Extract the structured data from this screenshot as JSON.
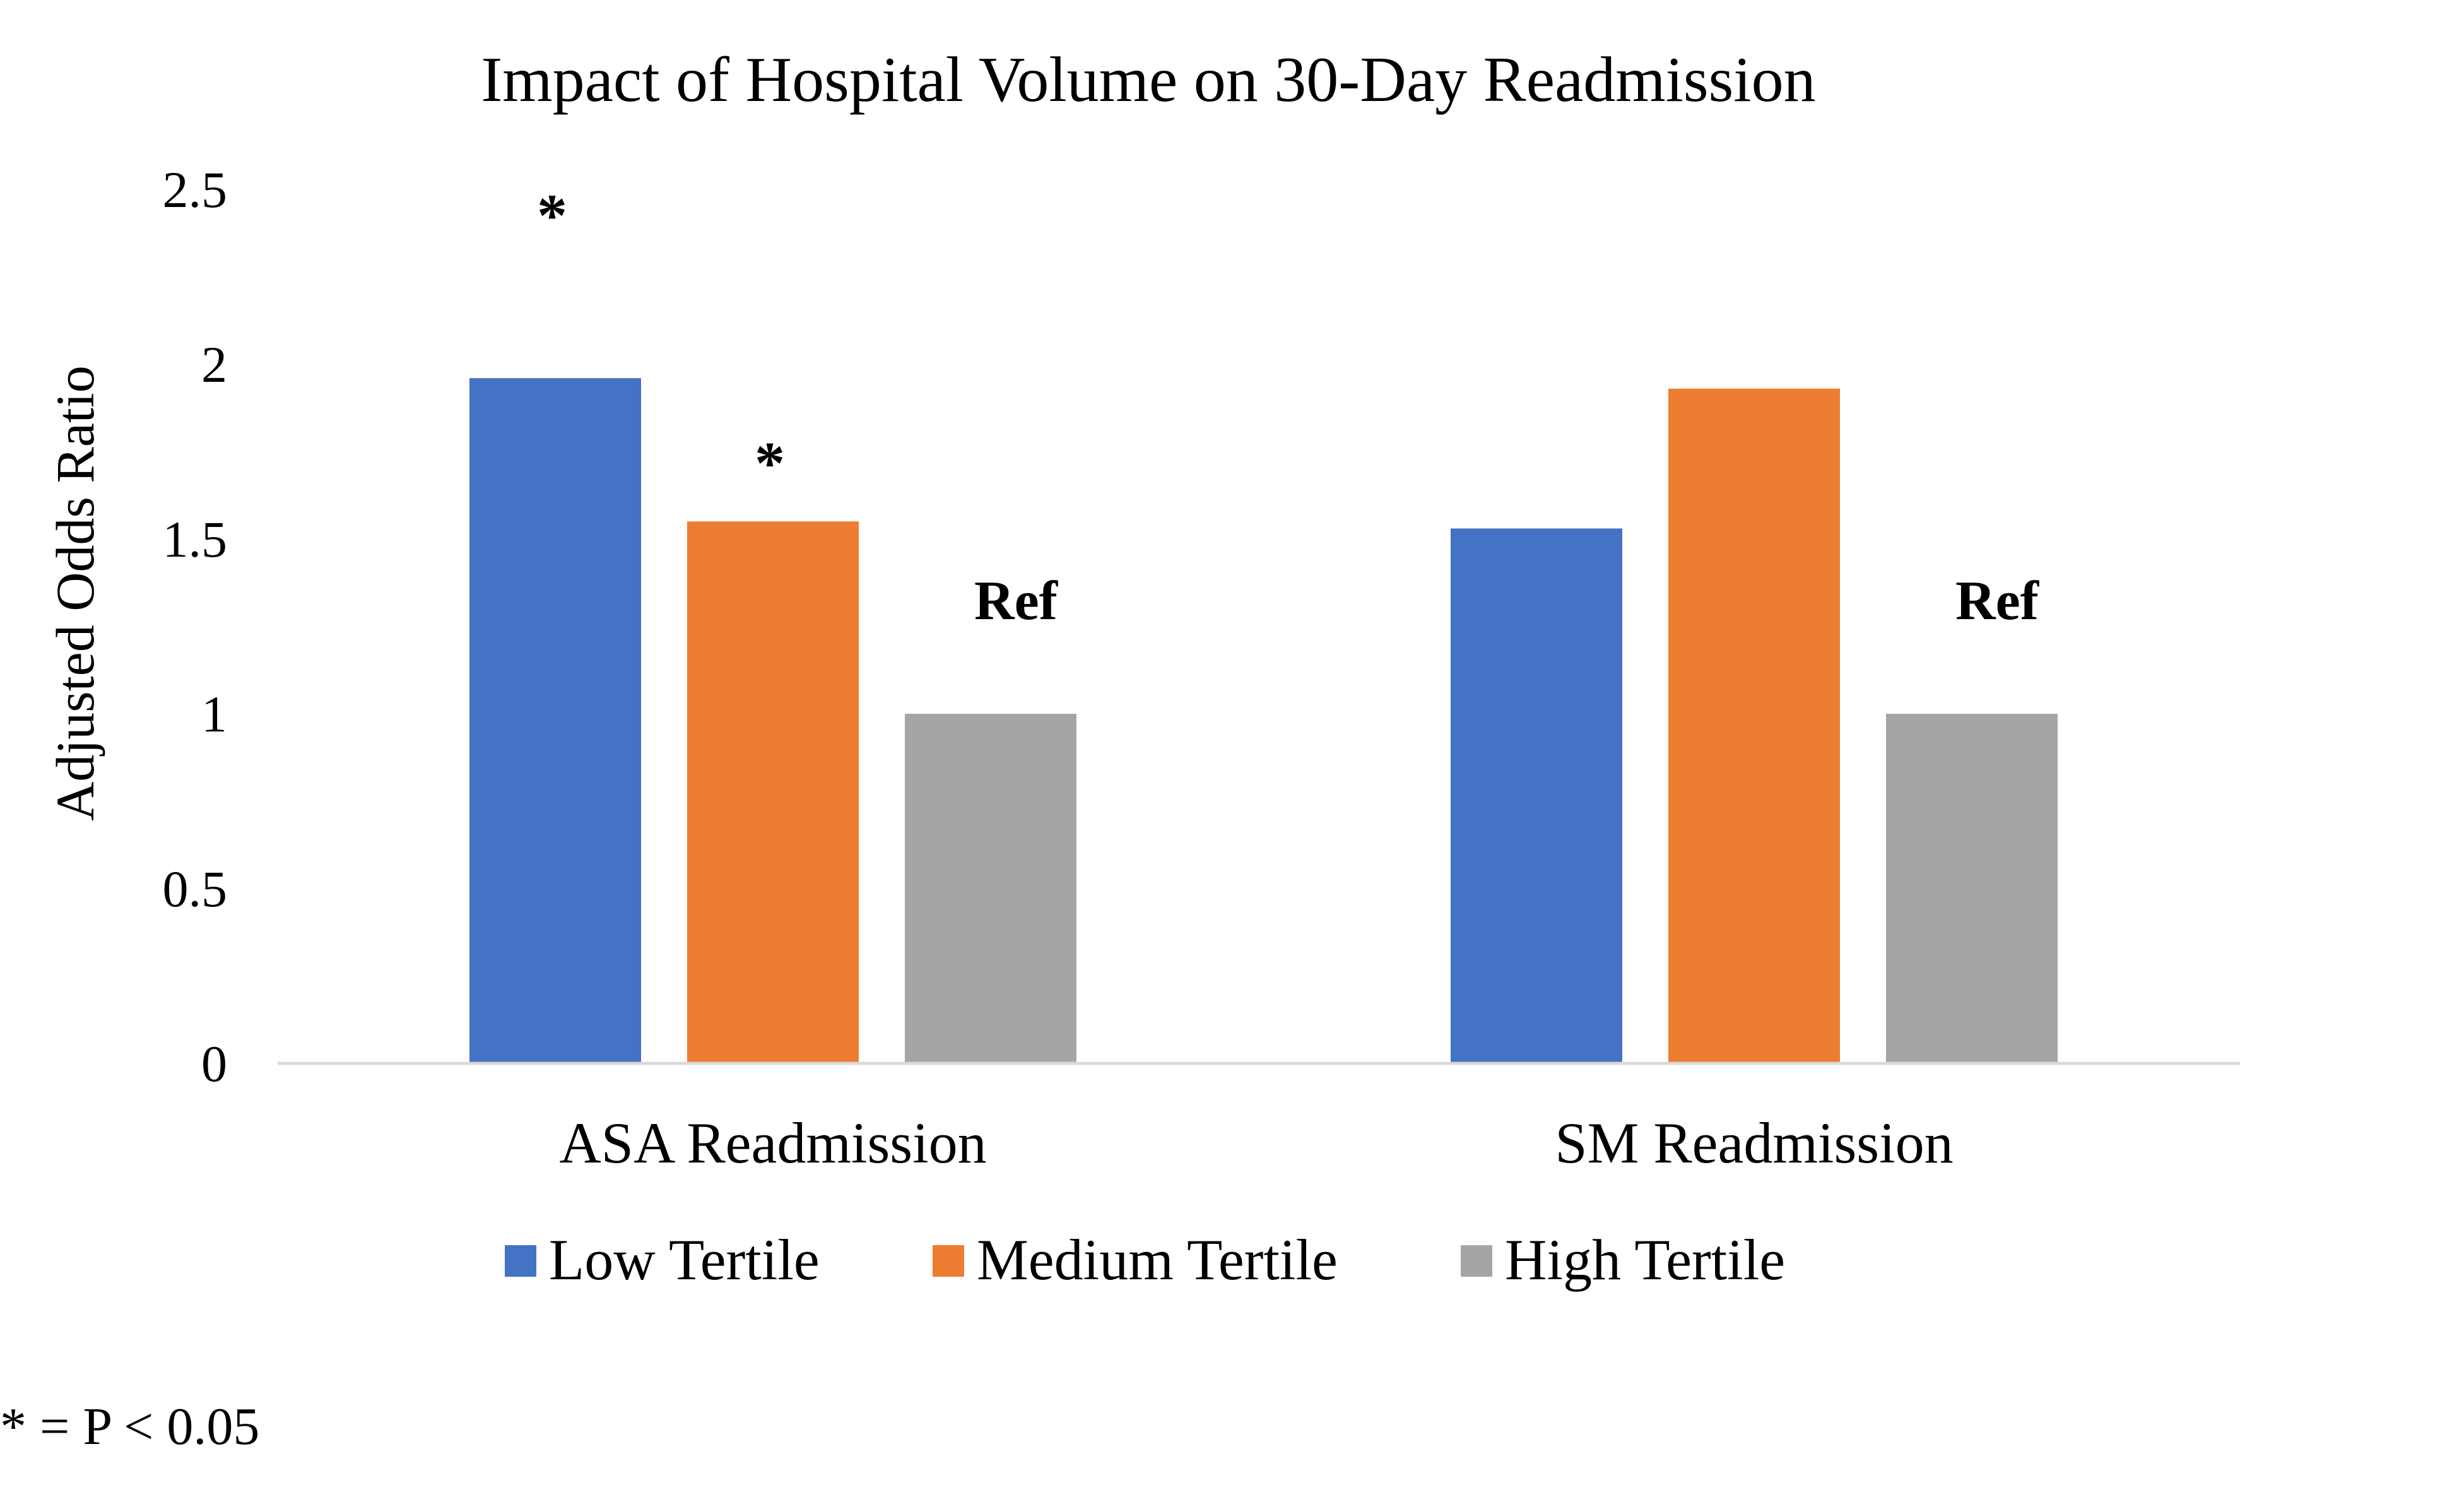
{
  "chart_data": {
    "type": "bar",
    "title": "Impact of Hospital Volume on 30-Day Readmission",
    "ylabel": "Adjusted Odds Ratio",
    "xlabel": "",
    "ylim": [
      0,
      2.5
    ],
    "yticks": [
      "0",
      "0.5",
      "1",
      "1.5",
      "2",
      "2.5"
    ],
    "grid": false,
    "legend_position": "bottom",
    "categories": [
      "ASA Readmission",
      "SM Readmission"
    ],
    "series": [
      {
        "name": "Low Tertile",
        "color": "#4472C4",
        "values": [
          1.96,
          1.53
        ],
        "annotations": [
          "*",
          ""
        ]
      },
      {
        "name": "Medium Tertile",
        "color": "#ED7D31",
        "values": [
          1.55,
          1.93
        ],
        "annotations": [
          "*",
          ""
        ]
      },
      {
        "name": "High Tertile",
        "color": "#A5A5A5",
        "values": [
          1.0,
          1.0
        ],
        "annotations": [
          "Ref",
          "Ref"
        ]
      }
    ],
    "footnote": "* = P < 0.05"
  }
}
